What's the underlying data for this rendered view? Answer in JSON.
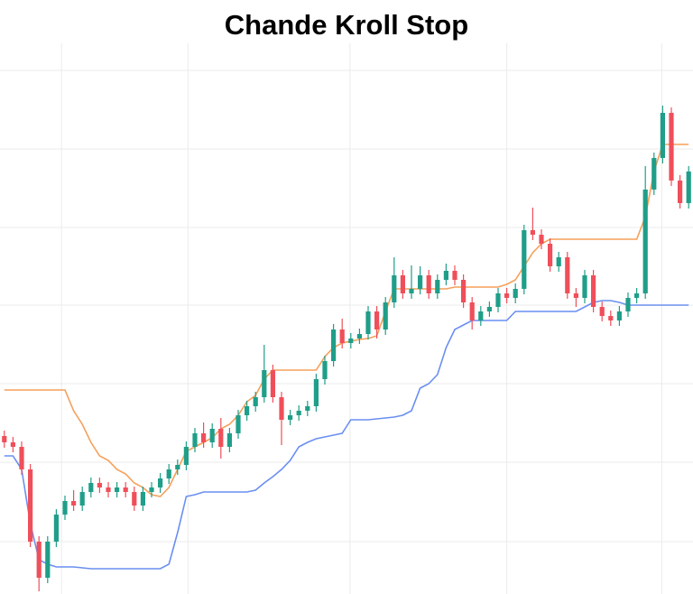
{
  "chart_data": {
    "type": "candlestick",
    "title": "Chande Kroll Stop",
    "xlim": [
      -0.5,
      79.5
    ],
    "xticks": [
      6.6,
      21.2,
      39.9,
      58,
      75.9
    ],
    "ylim": [
      0,
      610
    ],
    "yticks": [
      58,
      146,
      233,
      320,
      406,
      493,
      580
    ],
    "grid": true,
    "up_color": "#1f9e89",
    "down_color": "#ef4f5a",
    "open": [
      175,
      168,
      163,
      138,
      58,
      18,
      58,
      88,
      103,
      98,
      113,
      123,
      118,
      113,
      118,
      113,
      98,
      113,
      118,
      128,
      138,
      143,
      163,
      178,
      168,
      183,
      163,
      178,
      198,
      208,
      218,
      248,
      218,
      193,
      198,
      203,
      208,
      238,
      258,
      293,
      278,
      283,
      288,
      313,
      293,
      323,
      353,
      333,
      338,
      353,
      333,
      348,
      358,
      348,
      323,
      303,
      313,
      318,
      333,
      328,
      338,
      403,
      398,
      388,
      363,
      373,
      333,
      328,
      353,
      318,
      308,
      303,
      313,
      328,
      333,
      448,
      483,
      533,
      458,
      433
    ],
    "high": [
      181,
      174,
      169,
      144,
      64,
      64,
      94,
      109,
      115,
      119,
      129,
      129,
      124,
      124,
      124,
      119,
      119,
      124,
      134,
      144,
      149,
      169,
      184,
      190,
      189,
      195,
      184,
      204,
      214,
      224,
      276,
      254,
      224,
      204,
      209,
      214,
      244,
      264,
      299,
      305,
      289,
      294,
      319,
      319,
      329,
      373,
      359,
      364,
      363,
      359,
      354,
      366,
      364,
      354,
      329,
      319,
      324,
      339,
      339,
      344,
      409,
      428,
      404,
      394,
      379,
      379,
      339,
      359,
      359,
      324,
      314,
      319,
      334,
      339,
      474,
      489,
      541,
      539,
      464,
      474
    ],
    "low": [
      162,
      157,
      132,
      52,
      3,
      12,
      52,
      82,
      92,
      92,
      107,
      112,
      107,
      107,
      107,
      92,
      92,
      107,
      112,
      122,
      132,
      137,
      157,
      162,
      162,
      150,
      157,
      172,
      192,
      202,
      212,
      212,
      165,
      187,
      192,
      197,
      202,
      232,
      252,
      272,
      272,
      277,
      282,
      283,
      287,
      317,
      327,
      327,
      332,
      327,
      327,
      342,
      342,
      317,
      293,
      297,
      307,
      312,
      322,
      322,
      332,
      392,
      382,
      357,
      357,
      327,
      318,
      322,
      312,
      302,
      297,
      297,
      307,
      322,
      327,
      442,
      477,
      452,
      427,
      427
    ],
    "close": [
      168,
      163,
      138,
      58,
      18,
      58,
      88,
      103,
      98,
      113,
      123,
      118,
      113,
      118,
      113,
      98,
      113,
      118,
      128,
      138,
      143,
      163,
      178,
      168,
      183,
      163,
      178,
      198,
      208,
      218,
      248,
      218,
      193,
      198,
      203,
      208,
      238,
      258,
      293,
      278,
      283,
      288,
      313,
      293,
      323,
      353,
      333,
      338,
      353,
      333,
      348,
      358,
      348,
      323,
      303,
      313,
      318,
      333,
      328,
      338,
      403,
      398,
      388,
      363,
      373,
      333,
      328,
      353,
      318,
      308,
      303,
      313,
      328,
      333,
      448,
      483,
      533,
      458,
      433,
      468
    ],
    "lines": [
      {
        "color": "#f5a05a",
        "values": [
          226,
          226,
          226,
          226,
          226,
          226,
          226,
          226,
          203,
          188,
          168,
          153,
          148,
          138,
          133,
          123,
          118,
          110,
          108,
          118,
          138,
          158,
          163,
          168,
          173,
          183,
          188,
          198,
          213,
          220,
          238,
          248,
          248,
          248,
          248,
          248,
          248,
          263,
          273,
          278,
          280,
          282,
          283,
          286,
          313,
          338,
          338,
          338,
          338,
          338,
          338,
          338,
          340,
          340,
          340,
          340,
          340,
          340,
          343,
          348,
          363,
          378,
          388,
          393,
          393,
          393,
          393,
          393,
          393,
          393,
          393,
          393,
          393,
          393,
          418,
          468,
          498,
          498,
          498,
          498
        ]
      },
      {
        "color": "#6a8ff0",
        "values": [
          153,
          153,
          138,
          78,
          38,
          33,
          30,
          30,
          30,
          29,
          28,
          28,
          28,
          28,
          28,
          28,
          28,
          28,
          28,
          33,
          68,
          108,
          110,
          113,
          113,
          113,
          113,
          113,
          113,
          115,
          123,
          130,
          138,
          148,
          163,
          168,
          172,
          174,
          176,
          178,
          193,
          193,
          193,
          194,
          195,
          196,
          198,
          203,
          228,
          233,
          243,
          273,
          293,
          298,
          303,
          303,
          303,
          303,
          303,
          313,
          313,
          313,
          313,
          313,
          313,
          313,
          313,
          318,
          323,
          325,
          325,
          323,
          320,
          320,
          320,
          320,
          320,
          320,
          320,
          320
        ]
      }
    ]
  }
}
